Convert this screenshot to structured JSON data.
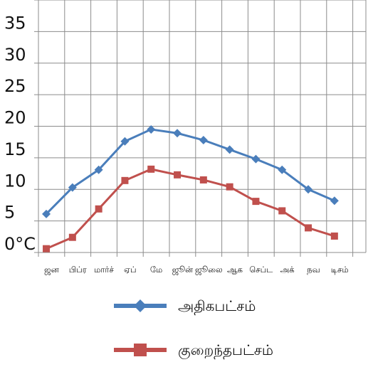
{
  "chart_data": {
    "type": "line",
    "categories": [
      "ஜன",
      "பிப்ர",
      "மார்ச்",
      "ஏப்",
      "மே",
      "ஜூன்",
      "ஜூலை",
      "ஆக",
      "செப்ட",
      "அக்",
      "நவ",
      "டிசம்"
    ],
    "yticks": [
      "0",
      "5",
      "10",
      "15",
      "20",
      "25",
      "30",
      "35"
    ],
    "y_unit": "°C",
    "ylim": [
      0,
      40
    ],
    "grid": true,
    "legend_position": "bottom",
    "series": [
      {
        "name": "அதிகபட்சம்",
        "color": "#4a7ebb",
        "marker": "diamond",
        "values": [
          6.1,
          10.3,
          13.1,
          17.6,
          19.5,
          18.9,
          17.8,
          16.3,
          14.8,
          13.1,
          10.0,
          8.2
        ]
      },
      {
        "name": "குறைந்தபட்சம்",
        "color": "#c0504d",
        "marker": "square",
        "values": [
          0.6,
          2.4,
          6.9,
          11.4,
          13.2,
          12.3,
          11.5,
          10.4,
          8.1,
          6.6,
          3.9,
          2.6
        ]
      }
    ]
  }
}
